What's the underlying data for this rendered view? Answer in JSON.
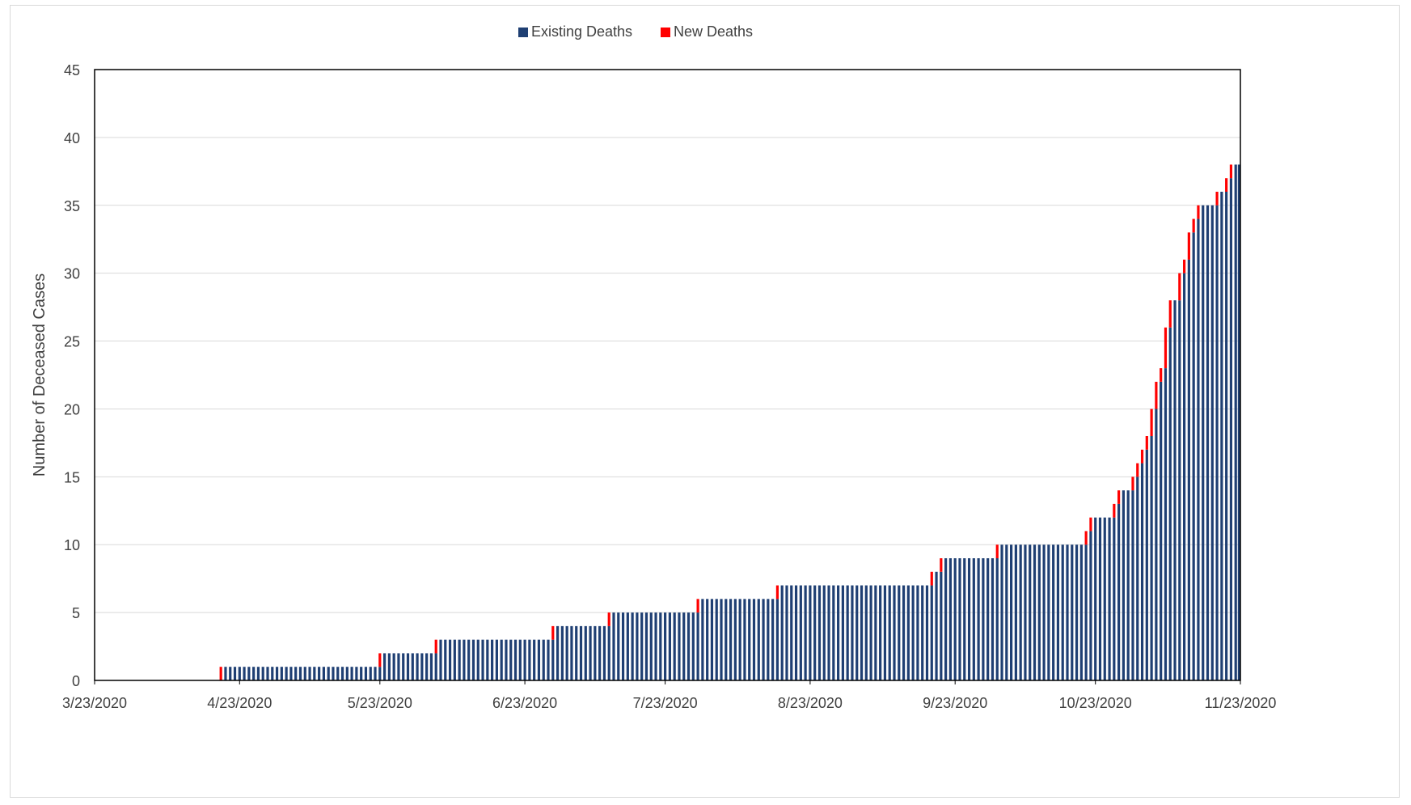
{
  "chart_data": {
    "type": "bar",
    "stacked": true,
    "title": "",
    "xlabel": "",
    "ylabel": "Number of Deceased Cases",
    "ylim": [
      0,
      45
    ],
    "yticks": [
      0,
      5,
      10,
      15,
      20,
      25,
      30,
      35,
      40,
      45
    ],
    "x_start": "3/23/2020",
    "x_end": "11/23/2020",
    "xtick_labels": [
      "3/23/2020",
      "4/23/2020",
      "5/23/2020",
      "6/23/2020",
      "7/23/2020",
      "8/23/2020",
      "9/23/2020",
      "10/23/2020",
      "11/23/2020"
    ],
    "legend": {
      "position": "top",
      "entries": [
        "Existing Deaths",
        "New Deaths"
      ]
    },
    "grid": {
      "y": true,
      "x": false
    },
    "colors": {
      "existing": "#1f3f73",
      "new": "#ff0000",
      "grid": "#d9d9d9",
      "axis": "#000000",
      "frame": "#d9d9d9"
    },
    "death_events": [
      {
        "date": "4/19/2020",
        "count": 1
      },
      {
        "date": "5/23/2020",
        "count": 1
      },
      {
        "date": "6/4/2020",
        "count": 1
      },
      {
        "date": "6/29/2020",
        "count": 1
      },
      {
        "date": "7/11/2020",
        "count": 1
      },
      {
        "date": "7/30/2020",
        "count": 1
      },
      {
        "date": "8/16/2020",
        "count": 1
      },
      {
        "date": "9/18/2020",
        "count": 1
      },
      {
        "date": "9/20/2020",
        "count": 1
      },
      {
        "date": "10/2/2020",
        "count": 1
      },
      {
        "date": "10/21/2020",
        "count": 1
      },
      {
        "date": "10/22/2020",
        "count": 1
      },
      {
        "date": "10/27/2020",
        "count": 1
      },
      {
        "date": "10/28/2020",
        "count": 1
      },
      {
        "date": "10/31/2020",
        "count": 1
      },
      {
        "date": "11/1/2020",
        "count": 1
      },
      {
        "date": "11/2/2020",
        "count": 1
      },
      {
        "date": "11/3/2020",
        "count": 1
      },
      {
        "date": "11/4/2020",
        "count": 2
      },
      {
        "date": "11/5/2020",
        "count": 2
      },
      {
        "date": "11/6/2020",
        "count": 1
      },
      {
        "date": "11/7/2020",
        "count": 3
      },
      {
        "date": "11/8/2020",
        "count": 2
      },
      {
        "date": "11/10/2020",
        "count": 2
      },
      {
        "date": "11/11/2020",
        "count": 1
      },
      {
        "date": "11/12/2020",
        "count": 2
      },
      {
        "date": "11/13/2020",
        "count": 1
      },
      {
        "date": "11/14/2020",
        "count": 1
      },
      {
        "date": "11/18/2020",
        "count": 1
      },
      {
        "date": "11/20/2020",
        "count": 1
      },
      {
        "date": "11/21/2020",
        "count": 1
      }
    ]
  }
}
